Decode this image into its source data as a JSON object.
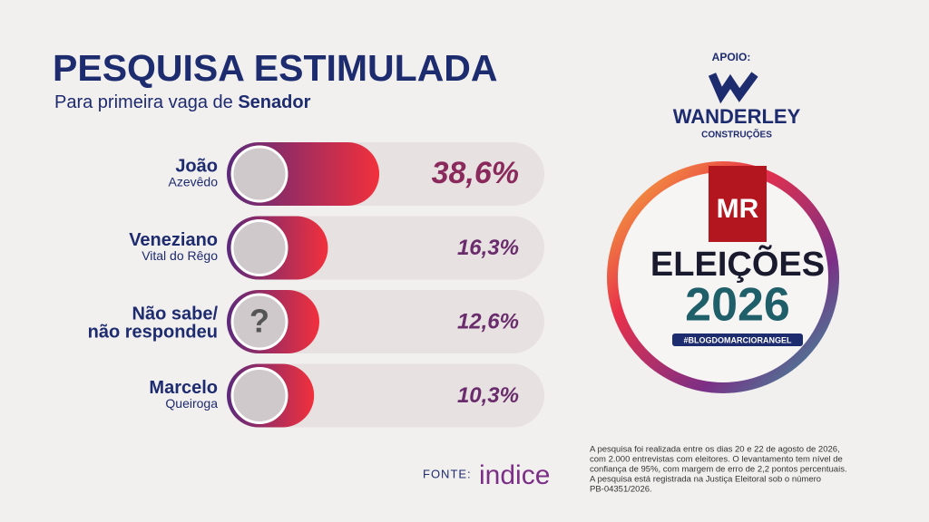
{
  "chart_data": {
    "type": "bar",
    "title": "PESQUISA ESTIMULADA",
    "subtitle": "Para primeira vaga de",
    "subtitle_bold": "Senador",
    "categories": [
      "João",
      "Veneziano",
      "Não sabe/",
      "Marcelo"
    ],
    "category_second_lines": [
      "Azevêdo",
      "Vital do Rêgo",
      "não respondeu",
      "Queiroga"
    ],
    "category_second_line_bold": [
      false,
      false,
      true,
      false
    ],
    "placeholder_icon": "?",
    "values": [
      38.6,
      16.3,
      12.6,
      10.3
    ],
    "value_labels": [
      "38,6%",
      "16,3%",
      "12,6%",
      "10,3%"
    ],
    "colors": [
      "#5b2a7c",
      "#f2303c"
    ]
  },
  "sponsor": {
    "label": "APOIO:",
    "name": "WANDERLEY",
    "tagline": "CONSTRUÇÕES"
  },
  "badge": {
    "initials": "MR",
    "title": "ELEIÇÕES",
    "year": "2026",
    "hashtag": "#BLOGDOMARCIORANGEL"
  },
  "source": {
    "label": "FONTE:",
    "name": "indice"
  },
  "footnote": [
    "A pesquisa foi realizada entre os dias 20 e 22 de agosto de 2026,",
    "com 2.000 entrevistas com eleitores. O levantamento tem nível de",
    "confiança de 95%, com margem de erro de 2,2 pontos percentuais.",
    "A pesquisa está registrada na Justiça Eleitoral sob o número",
    "PB-04351/2026."
  ]
}
